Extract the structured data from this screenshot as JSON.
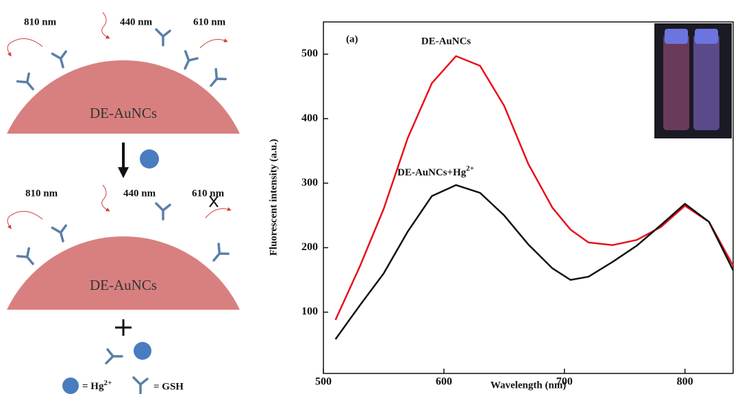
{
  "diagram": {
    "before": {
      "labels": [
        "810 nm",
        "440 nm",
        "610 nm"
      ],
      "particle": "DE-AuNCs"
    },
    "after": {
      "labels": [
        "810 nm",
        "440 nm",
        "610 nm"
      ],
      "particle": "DE-AuNCs"
    },
    "key": [
      {
        "text": "= Hg",
        "sup": "2+"
      },
      {
        "text": "= GSH"
      }
    ]
  },
  "chart_data": {
    "type": "line",
    "panel_label": "(a)",
    "x_label": "Wavelength (nm)",
    "y_label": "Fluorescent intensity (a.u.)",
    "x": [
      510,
      530,
      550,
      570,
      590,
      610,
      630,
      650,
      670,
      690,
      705,
      720,
      740,
      760,
      780,
      800,
      820,
      840
    ],
    "series": [
      {
        "name": "DE-AuNCs",
        "color": "#e8101c",
        "values": [
          88,
          170,
          260,
          370,
          455,
          497,
          482,
          420,
          330,
          262,
          228,
          208,
          204,
          212,
          232,
          265,
          240,
          172
        ]
      },
      {
        "name": "DE-AuNCs+Hg",
        "name_superscript": "2+",
        "color": "#111111",
        "values": [
          58,
          110,
          160,
          225,
          280,
          297,
          285,
          250,
          205,
          168,
          150,
          155,
          178,
          203,
          235,
          268,
          240,
          165
        ]
      }
    ],
    "xlim": [
      500,
      840
    ],
    "ylim": [
      5,
      550
    ],
    "xticks": [
      500,
      600,
      700,
      800
    ],
    "yticks": [
      100,
      200,
      300,
      400,
      500
    ]
  }
}
